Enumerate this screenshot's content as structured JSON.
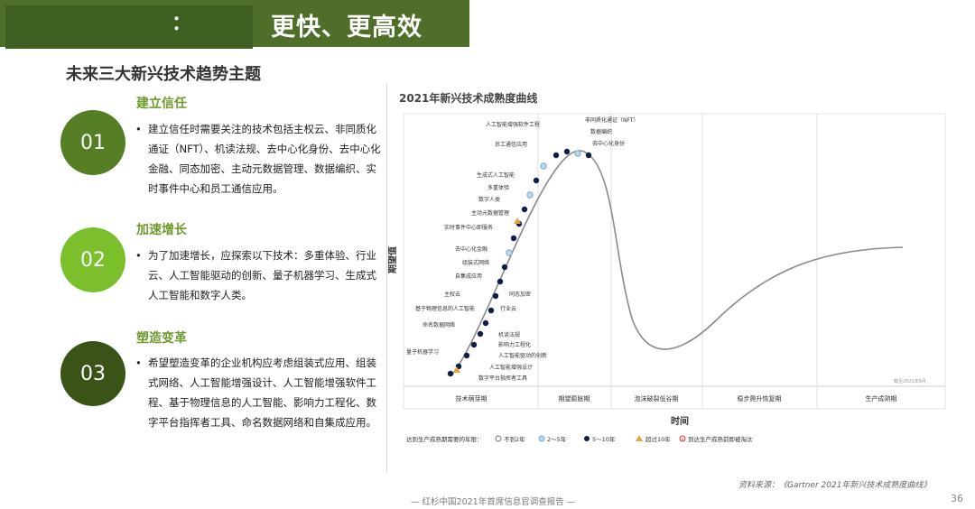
{
  "header": {
    "title_prefix": "：",
    "title": "更快、更高效"
  },
  "subtitle": "未来三大新兴技术趋势主题",
  "sections": [
    {
      "num": "01",
      "title": "建立信任",
      "color": "#567f25",
      "text": "建立信任时需要关注的技术包括主权云、非同质化通证（NFT）、机读法规、去中心化身份、去中心化金融、同态加密、主动元数据管理、数据编织、实时事件中心和员工通信应用。"
    },
    {
      "num": "02",
      "title": "加速增长",
      "color": "#7cbf2c",
      "text": "为了加速增长，应探索以下技术：多重体验、行业云、人工智能驱动的创新、量子机器学习、生成式人工智能和数字人类。"
    },
    {
      "num": "03",
      "title": "塑造变革",
      "color": "#3a5418",
      "text": "希望塑造变革的企业机构应考虑组装式应用、组装式网络、人工智能增强设计、人工智能增强软件工程、基于物理信息的人工智能、影响力工程化、数字平台指挥者工具、命名数据网络和自集成应用。"
    }
  ],
  "chart": {
    "title": "2021年新兴技术成熟度曲线",
    "y_label": "期望值",
    "x_label": "时间",
    "watermark": "截至2021年8月",
    "phases": [
      "技术萌芽期",
      "期望膨胀期",
      "泡沫破裂低谷期",
      "稳步爬升恢复期",
      "生产成熟期"
    ],
    "legend_title": "达到生产成熟期需要的年限：",
    "legend": [
      {
        "label": "不到2年",
        "icon": "white-circle"
      },
      {
        "label": "2～5年",
        "icon": "lightblue-circle"
      },
      {
        "label": "5～10年",
        "icon": "navy-circle"
      },
      {
        "label": "超过10年",
        "icon": "orange-triangle"
      },
      {
        "label": "到达生产成熟前即被淘汰",
        "icon": "red-x-circle"
      }
    ],
    "colors": {
      "navy": "#0f1e45",
      "lightblue": "#bcd6ea",
      "orange": "#e8a33a",
      "curve": "#777777"
    },
    "left_labels": [
      "人工智能增强软件工程",
      "员工通信应用",
      "生成式人工智能",
      "多重体验",
      "数字人类",
      "主动元数据管理",
      "实时事件中心即服务",
      "去中心化金融",
      "组装式网络",
      "自集成应用",
      "主权云",
      "基于物理信息的人工智能",
      "命名数据网络",
      "量子机器学习"
    ],
    "top_labels": [
      "非同质化通证（NFT）",
      "数据编织",
      "去中心化身份",
      "机读法规"
    ],
    "right_labels": [
      "同态加密",
      "行业云",
      "机读法规",
      "影响力工程化",
      "人工智能驱动的创新",
      "人工智能增强设计",
      "数字平台指挥者工具"
    ]
  },
  "source": "资料来源：《Gartner 2021年新兴技术成熟度曲线》",
  "footer": "— 红杉中国2021年首席信息官调查报告 —",
  "page_number": "36"
}
